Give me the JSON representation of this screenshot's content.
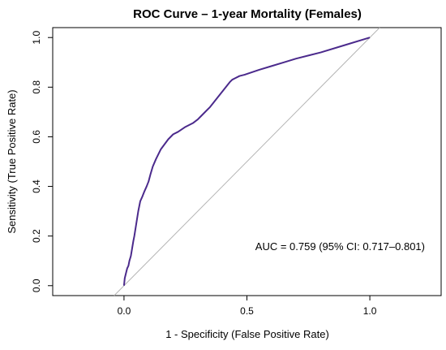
{
  "chart_data": {
    "type": "line",
    "title": "ROC Curve – 1-year Mortality (Females)",
    "xlabel": "1 - Specificity (False Positive Rate)",
    "ylabel": "Sensitivity (True Positive Rate)",
    "xlim": [
      -0.29,
      1.29
    ],
    "ylim": [
      -0.04,
      1.04
    ],
    "xticks": [
      "0.0",
      "0.5",
      "1.0"
    ],
    "yticks": [
      "0.0",
      "0.2",
      "0.4",
      "0.6",
      "0.8",
      "1.0"
    ],
    "grid": false,
    "annotation": "AUC = 0.759 (95% CI: 0.717–0.801)",
    "series": [
      {
        "color": "#4b2a8c",
        "x": [
          0.0,
          0.003,
          0.008,
          0.013,
          0.018,
          0.022,
          0.028,
          0.033,
          0.038,
          0.042,
          0.05,
          0.058,
          0.066,
          0.075,
          0.083,
          0.092,
          0.1,
          0.108,
          0.117,
          0.13,
          0.14,
          0.15,
          0.165,
          0.18,
          0.2,
          0.22,
          0.25,
          0.28,
          0.3,
          0.31,
          0.33,
          0.35,
          0.37,
          0.39,
          0.41,
          0.43,
          0.44,
          0.45,
          0.47,
          0.49,
          0.55,
          0.6,
          0.65,
          0.7,
          0.8,
          0.9,
          1.0
        ],
        "y": [
          0.0,
          0.03,
          0.05,
          0.07,
          0.08,
          0.1,
          0.12,
          0.15,
          0.18,
          0.2,
          0.25,
          0.3,
          0.34,
          0.36,
          0.38,
          0.4,
          0.42,
          0.45,
          0.48,
          0.51,
          0.53,
          0.55,
          0.57,
          0.59,
          0.61,
          0.62,
          0.64,
          0.655,
          0.67,
          0.68,
          0.7,
          0.72,
          0.745,
          0.77,
          0.795,
          0.82,
          0.83,
          0.835,
          0.845,
          0.85,
          0.87,
          0.885,
          0.9,
          0.915,
          0.94,
          0.97,
          1.0
        ]
      },
      {
        "color": "#b5b5b5",
        "x": [
          -0.04,
          1.04
        ],
        "y": [
          -0.04,
          1.04
        ]
      }
    ]
  }
}
